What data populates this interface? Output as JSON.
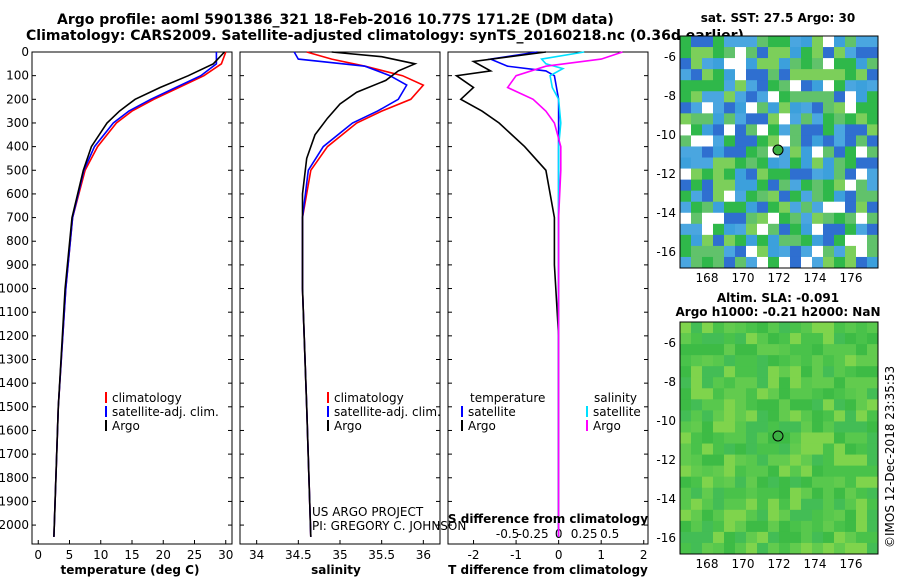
{
  "header": {
    "title_line1": "Argo profile: aoml 5901386_321 18-Feb-2016 10.77S 171.2E (DM data)",
    "title_line2": "Climatology: CARS2009. Satellite-adjusted climatology: synTS_20160218.nc (0.36d earlier)"
  },
  "colors": {
    "climatology": "#ff0000",
    "satellite": "#0000ff",
    "argo": "#000000",
    "sat_salinity": "#00e0ff",
    "argo_salinity": "#ff00ff"
  },
  "chart_data": [
    {
      "type": "line",
      "xlabel": "temperature (deg C)",
      "ylabel": "",
      "xlim": [
        -1,
        31
      ],
      "ylim": [
        2080,
        0
      ],
      "xticks": [
        "0",
        "5",
        "10",
        "15",
        "20",
        "25",
        "30"
      ],
      "yticks": [
        "0",
        "100",
        "200",
        "300",
        "400",
        "500",
        "600",
        "700",
        "800",
        "900",
        "1000",
        "1100",
        "1200",
        "1300",
        "1400",
        "1500",
        "1600",
        "1700",
        "1800",
        "1900",
        "2000"
      ],
      "legend": [
        "climatology",
        "satellite-adj. clim.",
        "Argo"
      ],
      "series": [
        {
          "name": "climatology",
          "y": [
            0,
            50,
            100,
            150,
            200,
            250,
            300,
            400,
            500,
            700,
            1000,
            1500,
            2050
          ],
          "x": [
            30,
            29.3,
            26.5,
            22.5,
            18.5,
            15,
            12.5,
            9.5,
            7.5,
            5.5,
            4.4,
            3.2,
            2.5
          ]
        },
        {
          "name": "satellite-adj. clim.",
          "y": [
            0,
            50,
            100,
            150,
            200,
            250,
            300,
            400,
            500,
            700,
            1000,
            1500,
            2050
          ],
          "x": [
            28.5,
            28.5,
            26,
            22,
            18,
            14.5,
            12,
            9,
            7.3,
            5.5,
            4.4,
            3.2,
            2.5
          ]
        },
        {
          "name": "Argo",
          "y": [
            0,
            50,
            100,
            150,
            200,
            250,
            300,
            400,
            500,
            700,
            1000,
            1500,
            2050
          ],
          "x": [
            29.8,
            28,
            24,
            19.5,
            15.5,
            13,
            11,
            8.5,
            7.2,
            5.4,
            4.3,
            3.2,
            2.5
          ]
        }
      ]
    },
    {
      "type": "line",
      "xlabel": "salinity",
      "xlim": [
        33.8,
        36.2
      ],
      "ylim": [
        2080,
        0
      ],
      "xticks": [
        "34",
        "34.5",
        "35",
        "35.5",
        "36"
      ],
      "legend": [
        "climatology",
        "satellite-adj. clim.",
        "Argo"
      ],
      "series": [
        {
          "name": "climatology",
          "y": [
            0,
            30,
            60,
            100,
            140,
            200,
            250,
            300,
            400,
            500,
            700,
            1000,
            1500,
            2050
          ],
          "x": [
            34.6,
            34.9,
            35.3,
            35.75,
            36,
            35.85,
            35.5,
            35.2,
            34.85,
            34.65,
            34.55,
            34.55,
            34.6,
            34.65
          ]
        },
        {
          "name": "satellite-adj. clim.",
          "y": [
            0,
            30,
            60,
            100,
            140,
            200,
            250,
            300,
            400,
            500,
            700,
            1000,
            1500,
            2050
          ],
          "x": [
            34.45,
            34.5,
            35.3,
            35.6,
            35.8,
            35.7,
            35.45,
            35.15,
            34.8,
            34.62,
            34.55,
            34.55,
            34.6,
            34.65
          ]
        },
        {
          "name": "Argo",
          "y": [
            0,
            20,
            50,
            80,
            120,
            170,
            220,
            280,
            350,
            450,
            600,
            1000,
            1500,
            2050
          ],
          "x": [
            34.9,
            35.5,
            35.9,
            35.7,
            35.55,
            35.2,
            35.0,
            34.85,
            34.7,
            34.6,
            34.55,
            34.55,
            34.6,
            34.65
          ]
        }
      ]
    },
    {
      "type": "line",
      "xlabel": "T difference from climatology",
      "xlabel_top": "S difference from climatology",
      "xlim": [
        -2.6,
        2.1
      ],
      "ylim": [
        2080,
        0
      ],
      "xticks": [
        "-2",
        "-1",
        "0",
        "1",
        "2"
      ],
      "xticks_top": [
        "-0.5",
        "-0.25",
        "0",
        "0.25",
        "0.5"
      ],
      "legend_left": [
        "temperature",
        "satellite",
        "Argo"
      ],
      "legend_right": [
        "salinity",
        "satellite",
        "Argo"
      ],
      "series": [
        {
          "name": "T satellite",
          "y": [
            0,
            30,
            60,
            80,
            100,
            150,
            200,
            300,
            500,
            800,
            1200,
            1600,
            2050
          ],
          "x": [
            -0.5,
            -1.6,
            -1.2,
            -0.3,
            -0.1,
            -0.05,
            0,
            0,
            0,
            0,
            0,
            0,
            0
          ]
        },
        {
          "name": "T Argo",
          "y": [
            0,
            40,
            80,
            100,
            150,
            200,
            250,
            300,
            400,
            500,
            700,
            900,
            1200,
            1600,
            2050
          ],
          "x": [
            -0.3,
            -2.0,
            -1.6,
            -2.4,
            -2.0,
            -2.3,
            -1.8,
            -1.4,
            -0.8,
            -0.3,
            -0.1,
            -0.1,
            0,
            0,
            0
          ]
        },
        {
          "name": "S satellite",
          "y": [
            0,
            30,
            50,
            70,
            100,
            150,
            200,
            300,
            400,
            600,
            800,
            1200,
            2050
          ],
          "x": [
            0.6,
            -0.4,
            -0.3,
            0.1,
            -0.2,
            -0.15,
            0,
            0.05,
            0,
            0,
            0,
            0,
            0
          ]
        },
        {
          "name": "S Argo",
          "y": [
            0,
            30,
            60,
            100,
            150,
            200,
            250,
            300,
            400,
            500,
            700,
            1000,
            1500,
            2050
          ],
          "x": [
            1.5,
            1.0,
            -0.3,
            -1.0,
            -1.2,
            -0.6,
            -0.3,
            -0.1,
            0.05,
            0.05,
            0,
            0,
            0,
            0
          ]
        }
      ]
    }
  ],
  "map_top": {
    "title": "sat. SST: 27.5 Argo: 30",
    "xticks": [
      "168",
      "170",
      "172",
      "174",
      "176"
    ],
    "yticks": [
      "-6",
      "-8",
      "-10",
      "-12",
      "-14",
      "-16"
    ]
  },
  "map_bottom": {
    "title_line1": "Altim. SLA: -0.091",
    "title_line2": "Argo h1000: -0.21 h2000: NaN",
    "xticks": [
      "168",
      "170",
      "172",
      "174",
      "176"
    ],
    "yticks": [
      "-6",
      "-8",
      "-10",
      "-12",
      "-14",
      "-16"
    ]
  },
  "credits": {
    "line1": "US ARGO PROJECT",
    "line2": "PI: GREGORY C. JOHNSON",
    "side": "©IMOS 12-Dec-2018 23:35:53"
  }
}
